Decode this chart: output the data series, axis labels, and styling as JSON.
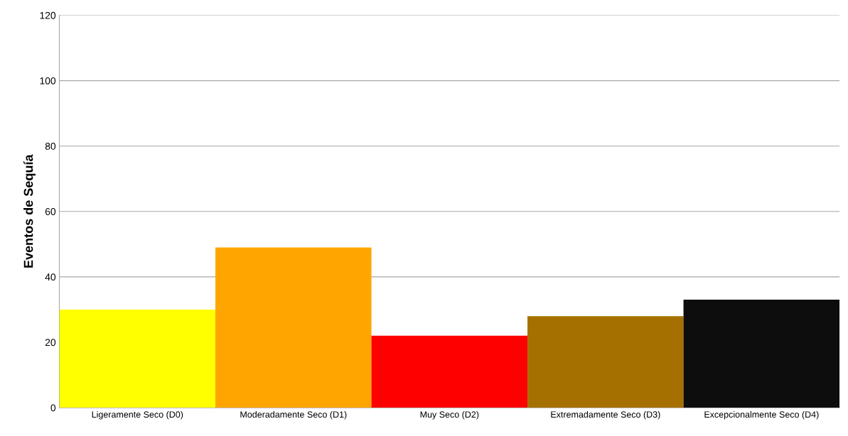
{
  "chart_data": {
    "type": "bar",
    "ylabel": "Eventos de Sequía",
    "categories": [
      "Ligeramente Seco (D0)",
      "Moderadamente Seco (D1)",
      "Muy Seco (D2)",
      "Extremadamente Seco (D3)",
      "Excepcionalmente Seco (D4)"
    ],
    "values": [
      30,
      49,
      22,
      28,
      33
    ],
    "colors": [
      "#ffff00",
      "#ffa500",
      "#ff0000",
      "#a67000",
      "#0d0d0d"
    ],
    "ylim": [
      0,
      120
    ],
    "yticks": [
      0,
      20,
      40,
      60,
      80,
      100,
      120
    ],
    "grid": "y",
    "legend": false
  }
}
